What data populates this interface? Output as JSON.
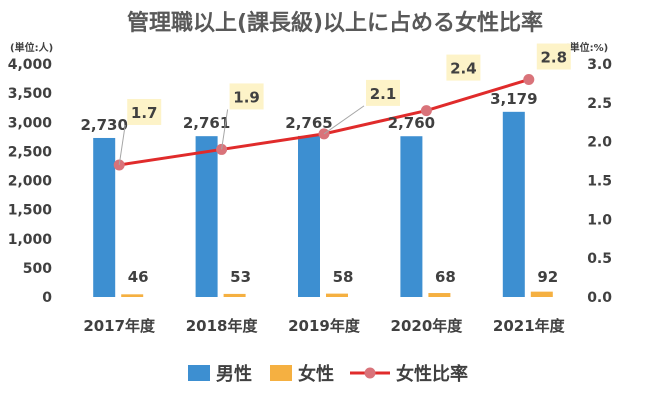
{
  "chart_data": {
    "type": "bar",
    "title": "管理職以上(課長級)以上に占める女性比率",
    "left_unit": "(単位:人)",
    "right_unit": "(単位:%)",
    "categories": [
      "2017年度",
      "2018年度",
      "2019年度",
      "2020年度",
      "2021年度"
    ],
    "left_axis": {
      "min": 0,
      "max": 4000,
      "step": 500,
      "tick_labels": [
        "0",
        "500",
        "1,000",
        "1,500",
        "2,000",
        "2,500",
        "3,000",
        "3,500",
        "4,000"
      ]
    },
    "right_axis": {
      "min": 0,
      "max": 3.0,
      "step": 0.5,
      "tick_labels": [
        "0.0",
        "0.5",
        "1.0",
        "1.5",
        "2.0",
        "2.5",
        "3.0"
      ]
    },
    "series": [
      {
        "name": "男性",
        "type": "bar",
        "axis": "left",
        "color": "#3d8fd1",
        "values": [
          2730,
          2761,
          2765,
          2760,
          3179
        ],
        "labels": [
          "2,730",
          "2,761",
          "2,765",
          "2,760",
          "3,179"
        ]
      },
      {
        "name": "女性",
        "type": "bar",
        "axis": "left",
        "color": "#f5b041",
        "values": [
          46,
          53,
          58,
          68,
          92
        ],
        "labels": [
          "46",
          "53",
          "58",
          "68",
          "92"
        ]
      },
      {
        "name": "女性比率",
        "type": "line",
        "axis": "right",
        "line_color": "#e02b2b",
        "marker_color": "#d9737a",
        "values": [
          1.7,
          1.9,
          2.1,
          2.4,
          2.8
        ],
        "labels": [
          "1.7",
          "1.9",
          "2.1",
          "2.4",
          "2.8"
        ],
        "label_bg": "#fdf3c8"
      }
    ],
    "grid": false,
    "legend_position": "bottom"
  }
}
